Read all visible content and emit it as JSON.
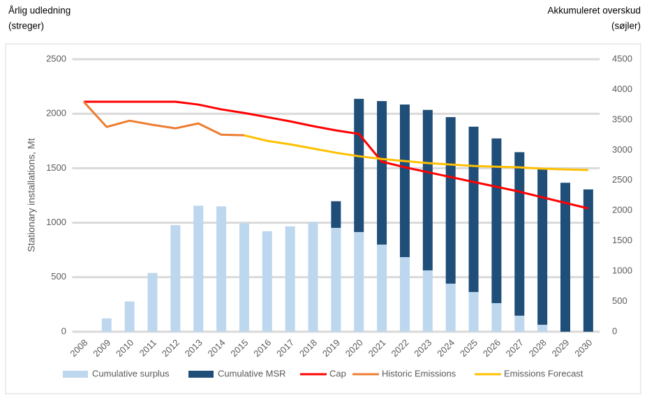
{
  "chart_data": {
    "type": "combo",
    "left_note": [
      "Årlig udledning",
      "(streger)"
    ],
    "right_note": [
      "Akkumuleret overskud",
      "(søjler)"
    ],
    "y_label": "Stationary installations, Mt",
    "categories": [
      "2008",
      "2009",
      "2010",
      "2011",
      "2012",
      "2013",
      "2014",
      "2015",
      "2016",
      "2017",
      "2018",
      "2019",
      "2020",
      "2021",
      "2022",
      "2023",
      "2024",
      "2025",
      "2026",
      "2027",
      "2028",
      "2029",
      "2030"
    ],
    "ylim": [
      0,
      2500
    ],
    "yticks": [
      0,
      500,
      1000,
      1500,
      2000,
      2500
    ],
    "y2lim": [
      0,
      4500
    ],
    "y2ticks": [
      0,
      500,
      1000,
      1500,
      2000,
      2500,
      3000,
      3500,
      4000,
      4500
    ],
    "grid": true,
    "legend": "bottom",
    "series": [
      {
        "name": "Cumulative surplus",
        "type": "bar",
        "axis": "y2",
        "color": "#bdd7ee",
        "values": [
          0,
          220,
          500,
          970,
          1760,
          2080,
          2070,
          1790,
          1660,
          1740,
          1810,
          1715,
          1646,
          1439,
          1232,
          1013,
          794,
          656,
          472,
          265,
          115,
          0,
          0
        ]
      },
      {
        "name": "Cumulative MSR",
        "type": "bar",
        "axis": "y2",
        "color": "#1f4e79",
        "values": [
          0,
          0,
          0,
          0,
          0,
          0,
          0,
          0,
          0,
          0,
          0,
          440,
          2200,
          2370,
          2520,
          2650,
          2750,
          2730,
          2720,
          2700,
          2570,
          2460,
          2350
        ]
      },
      {
        "name": "Cap",
        "type": "line",
        "color": "#ff0000",
        "values": [
          2110,
          2110,
          2110,
          2110,
          2110,
          2084,
          2040,
          2007,
          1969,
          1930,
          1886,
          1847,
          1815,
          1560,
          1509,
          1464,
          1419,
          1374,
          1330,
          1285,
          1233,
          1182,
          1131
        ]
      },
      {
        "name": "Historic Emissions",
        "type": "line",
        "color": "#ed7d31",
        "values": [
          2110,
          1879,
          1936,
          1898,
          1866,
          1911,
          1808,
          1802,
          null,
          null,
          null,
          null,
          null,
          null,
          null,
          null,
          null,
          null,
          null,
          null,
          null,
          null,
          null
        ]
      },
      {
        "name": "Emissions Forecast",
        "type": "line",
        "color": "#ffc000",
        "values": [
          null,
          null,
          null,
          null,
          null,
          null,
          null,
          1802,
          1751,
          1719,
          1681,
          1642,
          1610,
          1585,
          1566,
          1547,
          1534,
          1521,
          1514,
          1508,
          1496,
          1489,
          1483
        ]
      }
    ]
  }
}
